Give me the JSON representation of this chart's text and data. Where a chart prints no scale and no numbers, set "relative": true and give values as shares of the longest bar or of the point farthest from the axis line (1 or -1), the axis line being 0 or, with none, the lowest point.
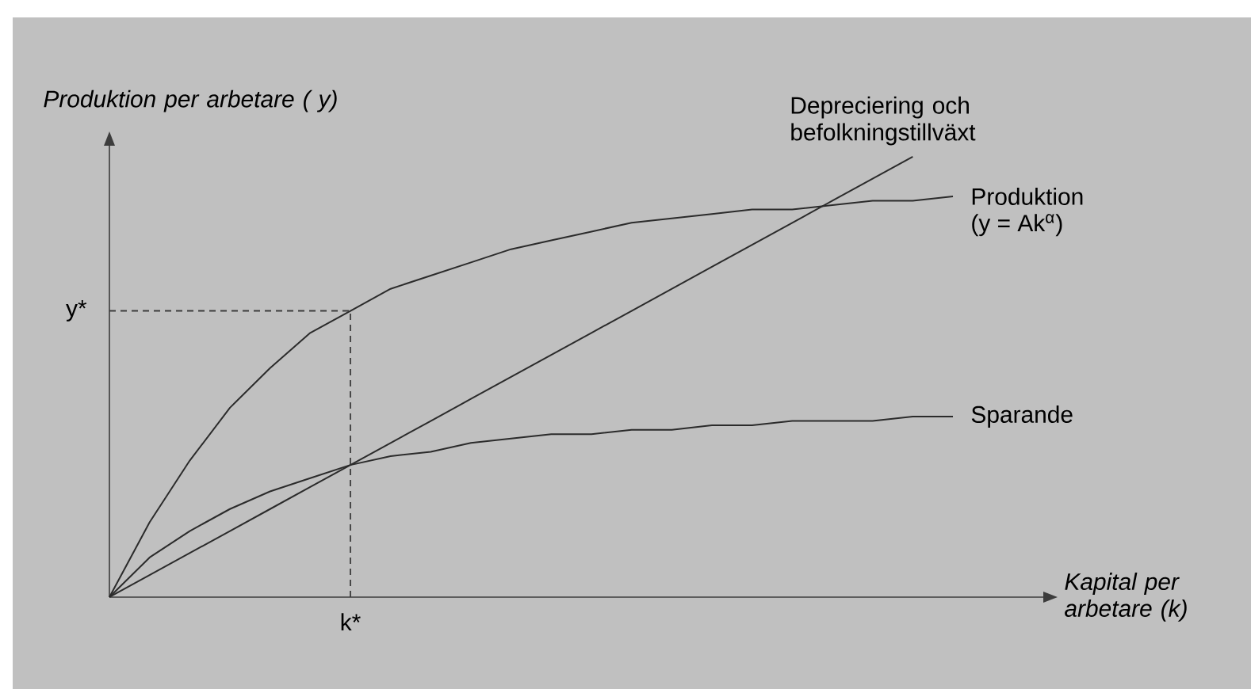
{
  "chart_data": {
    "type": "line",
    "relative": true,
    "xlabel": "Kapital per arbetare (k)",
    "ylabel": "Produktion per arbetare ( y)",
    "categories": [
      null,
      null,
      null,
      null,
      null,
      null,
      null,
      null,
      null,
      null,
      null,
      null,
      null,
      null,
      null,
      null,
      null,
      null,
      null,
      null,
      null,
      null
    ],
    "series": [
      {
        "name": "Produktion",
        "color": "#2b2b2b",
        "values": [
          0,
          0.17,
          0.31,
          0.43,
          0.52,
          0.6,
          0.65,
          0.7,
          0.73,
          0.76,
          0.79,
          0.81,
          0.83,
          0.85,
          0.86,
          0.87,
          0.88,
          0.88,
          0.89,
          0.9,
          0.9,
          0.91
        ]
      },
      {
        "name": "Sparande",
        "color": "#2b2b2b",
        "values": [
          0,
          0.09,
          0.15,
          0.2,
          0.24,
          0.27,
          0.3,
          0.32,
          0.33,
          0.35,
          0.36,
          0.37,
          0.37,
          0.38,
          0.38,
          0.39,
          0.39,
          0.4,
          0.4,
          0.4,
          0.41,
          0.41
        ]
      },
      {
        "name": "Depreciering och befolkningstillväxt",
        "color": "#2b2b2b",
        "values": [
          0,
          0.05,
          0.1,
          0.15,
          0.2,
          0.25,
          0.3,
          0.35,
          0.4,
          0.45,
          0.5,
          0.55,
          0.6,
          0.65,
          0.7,
          0.75,
          0.8,
          0.85,
          0.9,
          0.95,
          1,
          null
        ]
      }
    ],
    "annotations": [
      "y*",
      "k*",
      "(y = Ak$^{α}$)"
    ]
  }
}
